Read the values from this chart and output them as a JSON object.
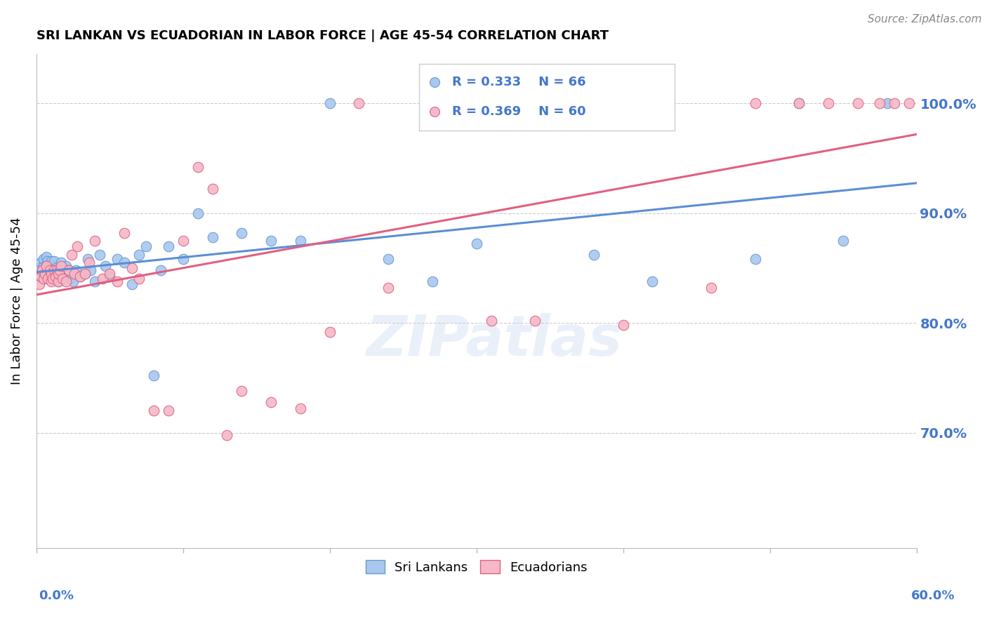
{
  "title": "SRI LANKAN VS ECUADORIAN IN LABOR FORCE | AGE 45-54 CORRELATION CHART",
  "source_text": "Source: ZipAtlas.com",
  "ylabel": "In Labor Force | Age 45-54",
  "xlim": [
    0.0,
    0.6
  ],
  "ylim": [
    0.595,
    1.045
  ],
  "yticks": [
    0.7,
    0.8,
    0.9,
    1.0
  ],
  "ytick_labels": [
    "70.0%",
    "80.0%",
    "90.0%",
    "100.0%"
  ],
  "watermark": "ZIPatlas",
  "blue_color": "#A8C8F0",
  "pink_color": "#F5B8C8",
  "blue_edge_color": "#6699CC",
  "pink_edge_color": "#E06080",
  "blue_line_color": "#5B8ED5",
  "pink_line_color": "#E06080",
  "legend_blue_r": "R = 0.333",
  "legend_blue_n": "N = 66",
  "legend_pink_r": "R = 0.369",
  "legend_pink_n": "N = 60",
  "blue_label": "Sri Lankans",
  "pink_label": "Ecuadorians",
  "sri_lankans_x": [
    0.002,
    0.003,
    0.004,
    0.005,
    0.005,
    0.006,
    0.007,
    0.007,
    0.008,
    0.008,
    0.009,
    0.01,
    0.01,
    0.01,
    0.011,
    0.011,
    0.012,
    0.012,
    0.013,
    0.013,
    0.014,
    0.015,
    0.015,
    0.016,
    0.017,
    0.018,
    0.019,
    0.02,
    0.02,
    0.022,
    0.023,
    0.024,
    0.025,
    0.027,
    0.03,
    0.033,
    0.035,
    0.037,
    0.04,
    0.043,
    0.047,
    0.05,
    0.055,
    0.06,
    0.065,
    0.07,
    0.075,
    0.08,
    0.085,
    0.09,
    0.1,
    0.11,
    0.12,
    0.14,
    0.16,
    0.18,
    0.2,
    0.24,
    0.27,
    0.3,
    0.38,
    0.42,
    0.49,
    0.52,
    0.55,
    0.58
  ],
  "sri_lankans_y": [
    0.85,
    0.855,
    0.848,
    0.852,
    0.858,
    0.845,
    0.853,
    0.86,
    0.848,
    0.856,
    0.852,
    0.84,
    0.848,
    0.856,
    0.845,
    0.852,
    0.848,
    0.856,
    0.845,
    0.85,
    0.848,
    0.838,
    0.848,
    0.845,
    0.855,
    0.848,
    0.85,
    0.845,
    0.852,
    0.848,
    0.84,
    0.845,
    0.838,
    0.848,
    0.842,
    0.845,
    0.858,
    0.848,
    0.838,
    0.862,
    0.852,
    0.842,
    0.858,
    0.855,
    0.835,
    0.862,
    0.87,
    0.752,
    0.848,
    0.87,
    0.858,
    0.9,
    0.878,
    0.882,
    0.875,
    0.875,
    1.0,
    0.858,
    0.838,
    0.872,
    0.862,
    0.838,
    0.858,
    1.0,
    0.875,
    1.0
  ],
  "ecuadorians_x": [
    0.002,
    0.003,
    0.004,
    0.005,
    0.006,
    0.007,
    0.008,
    0.009,
    0.01,
    0.01,
    0.011,
    0.012,
    0.013,
    0.014,
    0.015,
    0.015,
    0.016,
    0.017,
    0.018,
    0.02,
    0.022,
    0.024,
    0.026,
    0.028,
    0.03,
    0.033,
    0.036,
    0.04,
    0.045,
    0.05,
    0.055,
    0.06,
    0.065,
    0.07,
    0.08,
    0.09,
    0.1,
    0.11,
    0.12,
    0.13,
    0.14,
    0.16,
    0.18,
    0.2,
    0.22,
    0.24,
    0.27,
    0.31,
    0.34,
    0.37,
    0.4,
    0.43,
    0.46,
    0.49,
    0.52,
    0.54,
    0.56,
    0.575,
    0.585,
    0.595
  ],
  "ecuadorians_y": [
    0.835,
    0.842,
    0.848,
    0.84,
    0.845,
    0.852,
    0.84,
    0.848,
    0.838,
    0.845,
    0.84,
    0.848,
    0.842,
    0.848,
    0.838,
    0.845,
    0.848,
    0.852,
    0.84,
    0.838,
    0.848,
    0.862,
    0.845,
    0.87,
    0.842,
    0.845,
    0.855,
    0.875,
    0.84,
    0.845,
    0.838,
    0.882,
    0.85,
    0.84,
    0.72,
    0.72,
    0.875,
    0.942,
    0.922,
    0.698,
    0.738,
    0.728,
    0.722,
    0.792,
    1.0,
    0.832,
    1.0,
    0.802,
    0.802,
    1.0,
    0.798,
    1.0,
    0.832,
    1.0,
    1.0,
    1.0,
    1.0,
    1.0,
    1.0,
    1.0
  ],
  "xtick_positions": [
    0.0,
    0.1,
    0.2,
    0.3,
    0.4,
    0.5,
    0.6
  ],
  "grid_color": "#CCCCCC",
  "axis_color": "#BBBBBB",
  "tick_label_color": "#4477CC",
  "background_color": "#FFFFFF"
}
